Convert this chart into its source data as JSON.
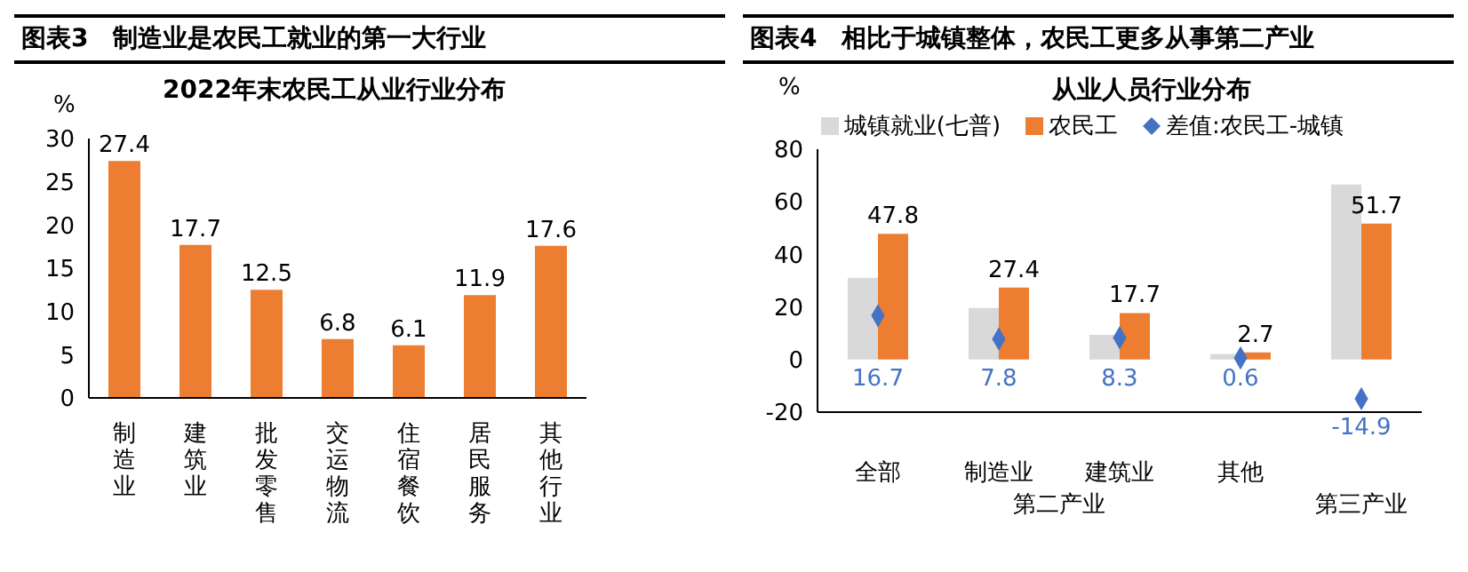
{
  "chart_data": [
    {
      "type": "bar",
      "title": "图表3　制造业是农民工就业的第一大行业",
      "subtitle": "2022年末农民工从业行业分布",
      "ylabel": "%",
      "categories": [
        "制造业",
        "建筑业",
        "批发零售",
        "交运物流",
        "住宿餐饮",
        "居民服务",
        "其他行业"
      ],
      "values": [
        27.4,
        17.7,
        12.5,
        6.8,
        6.1,
        11.9,
        17.6
      ],
      "color": "#ed7d31",
      "ylim": [
        0,
        30
      ],
      "yticks": [
        0,
        5,
        10,
        15,
        20,
        25,
        30
      ],
      "data_labels": true,
      "grid": false,
      "legend": false
    },
    {
      "type": "bar",
      "title": "图表4　相比于城镇整体，农民工更多从事第二产业",
      "subtitle": "从业人员行业分布",
      "ylabel": "%",
      "categories": [
        "全部",
        "制造业",
        "建筑业",
        "其他",
        null
      ],
      "series": [
        {
          "name": "城镇就业(七普)",
          "color": "#d9d9d9",
          "values": [
            31.1,
            19.6,
            9.4,
            2.1,
            66.6
          ]
        },
        {
          "name": "农民工",
          "color": "#ed7d31",
          "values": [
            47.8,
            27.4,
            17.7,
            2.7,
            51.7
          ],
          "value_labels": [
            "47.8",
            "27.4",
            "17.7",
            "2.7",
            "51.7"
          ]
        },
        {
          "name": "差值:农民工-城镇",
          "type": "scatter",
          "marker": "diamond",
          "color": "#4472c4",
          "values": [
            16.7,
            7.8,
            8.3,
            0.6,
            -14.9
          ],
          "value_labels": [
            "16.7",
            "7.8",
            "8.3",
            "0.6",
            "-14.9"
          ]
        }
      ],
      "ylim": [
        -20,
        80
      ],
      "yticks": [
        -20,
        0,
        20,
        40,
        60,
        80
      ],
      "grid": false,
      "legend": "top",
      "annotations": [
        "第二产业",
        "第三产业"
      ]
    }
  ]
}
